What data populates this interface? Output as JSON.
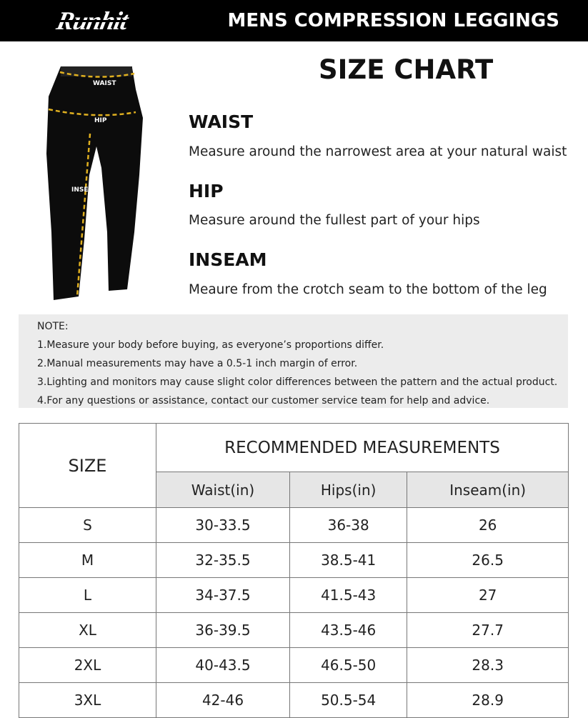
{
  "header": {
    "brand": "Runhit",
    "product": "MENS COMPRESSION LEGGINGS"
  },
  "image_labels": {
    "waist": "WAIST",
    "hip": "HIP",
    "inseam": "INSEAM"
  },
  "title": "SIZE CHART",
  "measures": [
    {
      "name": "WAIST",
      "desc": "Measure around the narrowest area at your natural waist"
    },
    {
      "name": "HIP",
      "desc": "Measure around the fullest part of your hips"
    },
    {
      "name": "INSEAM",
      "desc": "Meaure from the crotch seam to the bottom of the leg"
    }
  ],
  "note": {
    "title": "NOTE:",
    "items": [
      "1.Measure your body before buying, as everyone’s proportions differ.",
      "2.Manual measurements may have a 0.5-1 inch margin of error.",
      "3.Lighting and monitors may cause slight color differences between the pattern and the actual product.",
      "4.For any questions or assistance, contact our customer service team for help and advice."
    ]
  },
  "table": {
    "size_header": "SIZE",
    "group_header": "RECOMMENDED MEASUREMENTS",
    "columns": [
      "Waist(in)",
      "Hips(in)",
      "Inseam(in)"
    ],
    "rows": [
      [
        "S",
        "30-33.5",
        "36-38",
        "26"
      ],
      [
        "M",
        "32-35.5",
        "38.5-41",
        "26.5"
      ],
      [
        "L",
        "34-37.5",
        "41.5-43",
        "27"
      ],
      [
        "XL",
        "36-39.5",
        "43.5-46",
        "27.7"
      ],
      [
        "2XL",
        "40-43.5",
        "46.5-50",
        "28.3"
      ],
      [
        "3XL",
        "42-46",
        "50.5-54",
        "28.9"
      ]
    ]
  },
  "colors": {
    "header_bg": "#000000",
    "guide_line": "#e0b020",
    "note_bg": "#ececec",
    "subheader_bg": "#e6e6e6"
  }
}
